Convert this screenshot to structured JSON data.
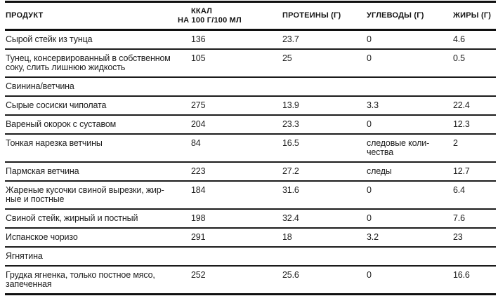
{
  "table": {
    "columns": {
      "product": "ПРОДУКТ",
      "kcal_line1": "ККАЛ",
      "kcal_line2": "НА 100 Г/100 МЛ",
      "protein": "ПРОТЕИНЫ (Г)",
      "carbs": "УГЛЕВОДЫ (Г)",
      "fat": "ЖИРЫ (Г)"
    },
    "rows": [
      {
        "type": "item",
        "product": [
          "Сырой стейк из тунца"
        ],
        "kcal": "136",
        "protein": "23.7",
        "carbs": [
          "0"
        ],
        "fat": "4.6"
      },
      {
        "type": "item",
        "product": [
          "Тунец, консервированный в собственном",
          "соку, слить лишнюю жидкость"
        ],
        "kcal": "105",
        "protein": "25",
        "carbs": [
          "0"
        ],
        "fat": "0.5"
      },
      {
        "type": "section",
        "label": "Свинина/ветчина"
      },
      {
        "type": "item",
        "product": [
          "Сырые сосиски чиполата"
        ],
        "kcal": "275",
        "protein": "13.9",
        "carbs": [
          "3.3"
        ],
        "fat": "22.4"
      },
      {
        "type": "item",
        "product": [
          "Вареный окорок с суставом"
        ],
        "kcal": "204",
        "protein": "23.3",
        "carbs": [
          "0"
        ],
        "fat": "12.3"
      },
      {
        "type": "item",
        "product": [
          "Тонкая нарезка ветчины"
        ],
        "kcal": "84",
        "protein": "16.5",
        "carbs": [
          "следовые коли-",
          "чества"
        ],
        "fat": "2"
      },
      {
        "type": "item",
        "product": [
          "Пармская ветчина"
        ],
        "kcal": "223",
        "protein": "27.2",
        "carbs": [
          "следы"
        ],
        "fat": "12.7"
      },
      {
        "type": "item",
        "product": [
          "Жареные кусочки свиной вырезки, жир-",
          "ные и постные"
        ],
        "kcal": "184",
        "protein": "31.6",
        "carbs": [
          "0"
        ],
        "fat": "6.4"
      },
      {
        "type": "item",
        "product": [
          "Свиной стейк, жирный и постный"
        ],
        "kcal": "198",
        "protein": "32.4",
        "carbs": [
          "0"
        ],
        "fat": "7.6"
      },
      {
        "type": "item",
        "product": [
          "Испанское чоризо"
        ],
        "kcal": "291",
        "protein": "18",
        "carbs": [
          "3.2"
        ],
        "fat": "23"
      },
      {
        "type": "section",
        "label": "Ягнятина"
      },
      {
        "type": "item",
        "product": [
          "Грудка ягненка, только постное мясо,",
          "запеченная"
        ],
        "kcal": "252",
        "protein": "25.6",
        "carbs": [
          "0"
        ],
        "fat": "16.6"
      }
    ]
  },
  "colors": {
    "background": "#ffffff",
    "text": "#1c1c1c",
    "rule_thick": "#101010",
    "rule_thin": "#1b1b1b"
  }
}
